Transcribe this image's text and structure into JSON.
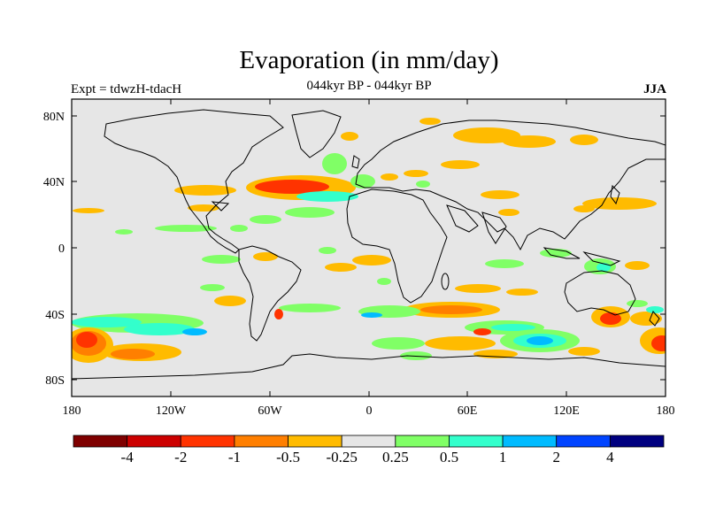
{
  "title": "Evaporation (in mm/day)",
  "subtitle_left": "Expt = tdwzH-tdacH",
  "subtitle_center": "044kyr BP - 044kyr BP",
  "subtitle_right": "JJA",
  "map": {
    "lon_range": [
      -180,
      180
    ],
    "lat_range": [
      -90,
      90
    ],
    "x_ticks": [
      "180",
      "120W",
      "60W",
      "0",
      "60E",
      "120E",
      "180"
    ],
    "y_ticks": [
      "80N",
      "40N",
      "0",
      "40S",
      "80S"
    ],
    "background": "#e6e6e6"
  },
  "colorbar": {
    "colors": [
      "#7f0000",
      "#cc0000",
      "#ff3300",
      "#ff7f00",
      "#ffbb00",
      "#e6e6e6",
      "#80ff66",
      "#33ffcc",
      "#00bbff",
      "#0044ff",
      "#000080"
    ],
    "labels": [
      "-4",
      "-2",
      "-1",
      "-0.5",
      "-0.25",
      "0.25",
      "0.5",
      "1",
      "2",
      "4"
    ]
  }
}
